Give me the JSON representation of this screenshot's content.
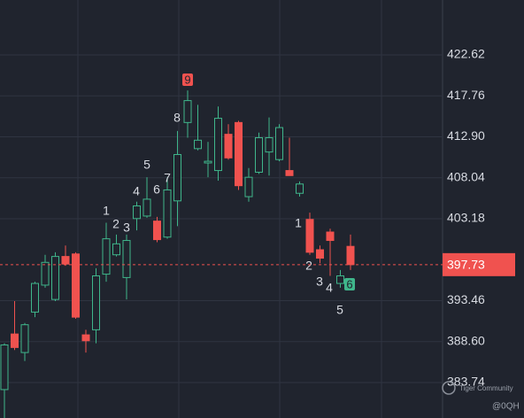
{
  "chart_data": {
    "type": "candlestick",
    "up_color": "#3fb68b",
    "down_color": "#f0524f",
    "ylim": [
      379.53,
      429.14
    ],
    "yticks": [
      422.62,
      417.76,
      {
        "value": 412.9,
        "label": "412.90"
      },
      408.04,
      403.18,
      393.46,
      {
        "value": 388.6,
        "label": "388.60"
      },
      383.74
    ],
    "grid": true,
    "open": [
      382.9,
      389.5,
      387.3,
      392.1,
      395.3,
      393.6,
      398.7,
      399.0,
      389.4,
      390.0,
      396.6,
      398.9,
      396.2,
      403.2,
      403.5,
      402.9,
      401.0,
      405.3,
      414.6,
      411.5,
      409.8,
      408.9,
      413.2,
      414.6,
      405.8,
      408.7,
      411.1,
      410.2,
      408.9,
      406.2,
      403.1,
      399.5,
      401.6,
      395.5,
      399.9
    ],
    "high": [
      388.4,
      393.4,
      390.8,
      395.7,
      398.9,
      399.2,
      400.0,
      399.2,
      390.0,
      397.3,
      402.7,
      401.3,
      401.3,
      405.2,
      408.1,
      403.4,
      408.1,
      413.6,
      418.4,
      416.7,
      412.3,
      416.5,
      414.4,
      414.8,
      409.2,
      413.4,
      415.2,
      414.4,
      412.8,
      407.6,
      403.9,
      400.0,
      402.0,
      397.1,
      401.3
    ],
    "low": [
      379.5,
      387.6,
      386.3,
      391.5,
      395.0,
      393.4,
      397.6,
      391.3,
      387.3,
      388.4,
      395.7,
      398.7,
      393.6,
      401.8,
      403.3,
      400.4,
      400.8,
      402.3,
      412.8,
      411.3,
      408.1,
      407.7,
      410.2,
      406.6,
      405.2,
      408.5,
      408.3,
      410.0,
      408.3,
      405.8,
      398.9,
      397.9,
      396.4,
      395.0,
      397.1
    ],
    "close": [
      388.2,
      387.9,
      390.6,
      395.5,
      398.0,
      398.7,
      397.8,
      391.5,
      388.7,
      396.4,
      400.8,
      400.2,
      400.6,
      404.7,
      405.5,
      400.7,
      406.6,
      410.8,
      417.2,
      412.5,
      410.0,
      415.1,
      410.4,
      407.1,
      408.1,
      412.8,
      412.8,
      414.0,
      408.3,
      407.3,
      399.2,
      398.5,
      400.6,
      396.4,
      397.73
    ],
    "annotations": [
      "1",
      "2",
      "3",
      "4",
      "5",
      "6",
      "7",
      "8",
      "9",
      "1",
      "2",
      "3",
      "4",
      "5",
      "6"
    ],
    "current_price": 397.73,
    "watermark": "Tiger Community",
    "handle": "@0QH"
  }
}
